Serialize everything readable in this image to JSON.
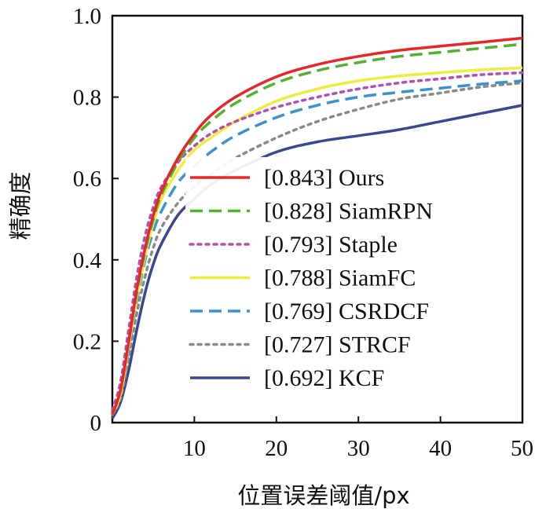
{
  "chart_data": {
    "type": "line",
    "title": "",
    "xlabel": "位置误差阈值/px",
    "ylabel": "精确度",
    "xlim": [
      0,
      50
    ],
    "ylim": [
      0,
      1.0
    ],
    "x_ticks": [
      "10",
      "20",
      "30",
      "40",
      "50"
    ],
    "y_ticks": [
      "0",
      "0.2",
      "0.4",
      "0.6",
      "0.8",
      "1.0"
    ],
    "grid": false,
    "legend_position": "center-right",
    "x": [
      0,
      1,
      2,
      3,
      4,
      5,
      6,
      8,
      10,
      12,
      15,
      20,
      25,
      30,
      35,
      40,
      45,
      50
    ],
    "series": [
      {
        "name": "[0.843] Ours",
        "color": "#e8262a",
        "dash": "solid",
        "values": [
          0.02,
          0.08,
          0.2,
          0.33,
          0.43,
          0.51,
          0.57,
          0.65,
          0.71,
          0.755,
          0.8,
          0.85,
          0.88,
          0.9,
          0.915,
          0.925,
          0.935,
          0.945
        ]
      },
      {
        "name": "[0.828] SiamRPN",
        "color": "#55b030",
        "dash": "dashed",
        "values": [
          0.02,
          0.08,
          0.2,
          0.32,
          0.42,
          0.5,
          0.56,
          0.64,
          0.7,
          0.74,
          0.785,
          0.835,
          0.865,
          0.885,
          0.9,
          0.91,
          0.92,
          0.93
        ]
      },
      {
        "name": "[0.793] Staple",
        "color": "#b450b0",
        "dash": "dotted",
        "values": [
          0.03,
          0.1,
          0.23,
          0.36,
          0.46,
          0.53,
          0.58,
          0.64,
          0.68,
          0.71,
          0.74,
          0.775,
          0.8,
          0.82,
          0.835,
          0.845,
          0.855,
          0.86
        ]
      },
      {
        "name": "[0.788] SiamFC",
        "color": "#eeee40",
        "dash": "solid",
        "values": [
          0.02,
          0.07,
          0.19,
          0.31,
          0.41,
          0.49,
          0.55,
          0.62,
          0.67,
          0.7,
          0.74,
          0.79,
          0.82,
          0.84,
          0.852,
          0.86,
          0.867,
          0.872
        ]
      },
      {
        "name": "[0.769] CSRDCF",
        "color": "#3a93d0",
        "dash": "dashed",
        "values": [
          0.02,
          0.07,
          0.18,
          0.3,
          0.4,
          0.47,
          0.52,
          0.59,
          0.63,
          0.665,
          0.705,
          0.75,
          0.78,
          0.8,
          0.812,
          0.822,
          0.832,
          0.84
        ]
      },
      {
        "name": "[0.727] STRCF",
        "color": "#8a8a8a",
        "dash": "dotted",
        "values": [
          0.02,
          0.06,
          0.16,
          0.27,
          0.36,
          0.43,
          0.48,
          0.54,
          0.58,
          0.61,
          0.65,
          0.7,
          0.74,
          0.77,
          0.795,
          0.81,
          0.825,
          0.835
        ]
      },
      {
        "name": "[0.692] KCF",
        "color": "#3a4894",
        "dash": "solid",
        "values": [
          0.01,
          0.05,
          0.13,
          0.23,
          0.32,
          0.39,
          0.44,
          0.51,
          0.55,
          0.585,
          0.62,
          0.665,
          0.69,
          0.705,
          0.72,
          0.74,
          0.76,
          0.78
        ]
      }
    ]
  }
}
